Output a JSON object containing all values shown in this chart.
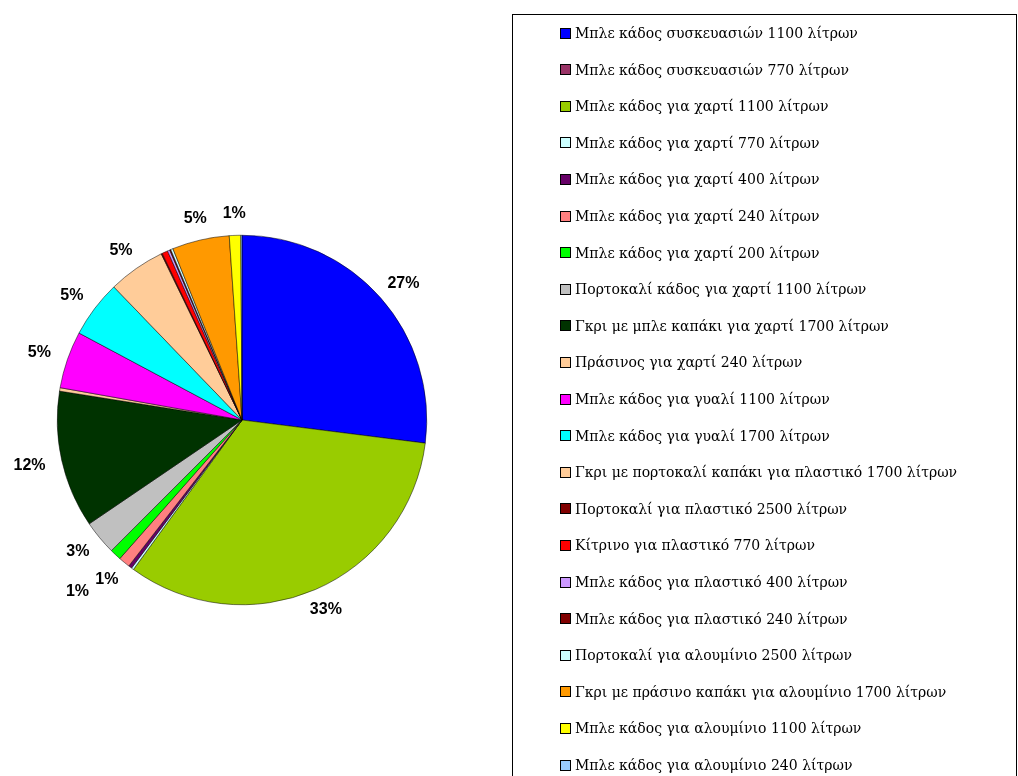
{
  "chart_data": {
    "type": "pie",
    "legend": "right",
    "categories": [
      "Μπλε κάδος συσκευασιών 1100 λίτρων",
      "Μπλε κάδος συσκευασιών 770 λίτρων",
      "Μπλε κάδος για χαρτί 1100 λίτρων",
      "Μπλε κάδος για χαρτί 770 λίτρων",
      "Μπλε κάδος για χαρτί 400 λίτρων",
      "Μπλε κάδος για χαρτί 240 λίτρων",
      "Μπλε κάδος για χαρτί 200 λίτρων",
      "Πορτοκαλί κάδος για χαρτί 1100 λίτρων",
      "Γκρι με μπλε καπάκι για χαρτί 1700 λίτρων",
      "Πράσινος για χαρτί 240 λίτρων",
      "Μπλε κάδος για γυαλί 1100 λίτρων",
      "Μπλε κάδος για γυαλί 1700 λίτρων",
      "Γκρι με πορτοκαλί καπάκι για πλαστικό 1700 λίτρων",
      "Πορτοκαλί για πλαστικό 2500 λίτρων",
      "Κίτρινο για πλαστικό 770 λίτρων",
      "Μπλε κάδος για πλαστικό 400 λίτρων",
      "Μπλε κάδος για πλαστικό 240 λίτρων",
      "Πορτοκαλί για αλουμίνιο 2500 λίτρων",
      "Γκρι με πράσινο καπάκι για αλουμίνιο 1700 λίτρων",
      "Μπλε κάδος για αλουμίνιο 1100 λίτρων",
      "Μπλε κάδος για αλουμίνιο 240 λίτρων"
    ],
    "values": [
      27,
      0,
      33,
      0.2,
      0.3,
      1,
      1,
      3,
      12,
      0.3,
      5,
      5,
      5,
      0.1,
      0.5,
      0.2,
      0.1,
      0.2,
      5,
      1,
      0.1
    ],
    "value_labels": [
      "27%",
      null,
      "33%",
      null,
      null,
      "1%",
      "1%",
      "3%",
      "12%",
      null,
      "5%",
      "5%",
      "5%",
      null,
      null,
      null,
      null,
      null,
      "5%",
      "1%",
      null
    ],
    "colors": [
      "#0000ff",
      "#993366",
      "#99cc00",
      "#ccffff",
      "#660066",
      "#ff8080",
      "#00ff00",
      "#c0c0c0",
      "#003300",
      "#ffcc99",
      "#ff00ff",
      "#00ffff",
      "#ffcc99",
      "#800000",
      "#ff0000",
      "#cc99ff",
      "#800000",
      "#ccffff",
      "#ff9900",
      "#ffff00",
      "#99ccff"
    ]
  }
}
